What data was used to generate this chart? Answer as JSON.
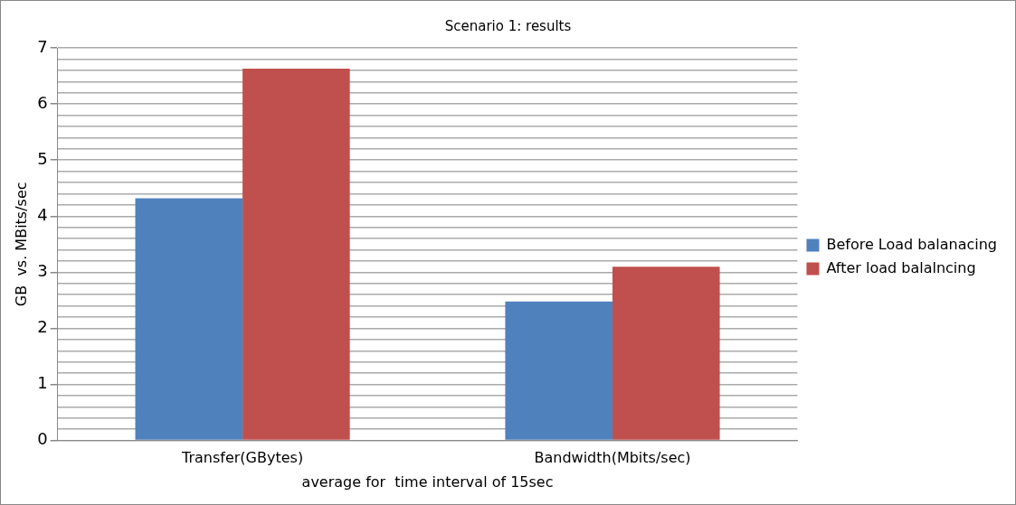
{
  "chart_data": {
    "type": "bar",
    "title": "Scenario 1: results",
    "xlabel": "average for  time interval of 15sec",
    "ylabel": "GB  vs. MBits/sec",
    "categories": [
      "Transfer(GBytes)",
      "Bandwidth(Mbits/sec)"
    ],
    "series": [
      {
        "name": "Before Load balanacing",
        "color": "#4f81bd",
        "values": [
          4.32,
          2.48
        ]
      },
      {
        "name": "After load balalncing",
        "color": "#c0504d",
        "values": [
          6.63,
          3.1
        ]
      }
    ],
    "ylim": [
      0,
      7
    ],
    "yticks": [
      0,
      {
        "value": 0.2,
        "label": null
      },
      {
        "value": 0.4,
        "label": null
      },
      {
        "value": 0.6,
        "label": null
      },
      {
        "value": 0.8,
        "label": null
      },
      1,
      {
        "value": 1.2,
        "label": null
      },
      {
        "value": 1.4,
        "label": null
      },
      {
        "value": 1.6,
        "label": null
      },
      {
        "value": 1.8,
        "label": null
      },
      2,
      {
        "value": 2.2,
        "label": null
      },
      {
        "value": 2.4,
        "label": null
      },
      {
        "value": 2.6,
        "label": null
      },
      {
        "value": 2.8,
        "label": null
      },
      3,
      {
        "value": 3.2,
        "label": null
      },
      {
        "value": 3.4,
        "label": null
      },
      {
        "value": 3.6,
        "label": null
      },
      {
        "value": 3.8,
        "label": null
      },
      4,
      {
        "value": 4.2,
        "label": null
      },
      {
        "value": 4.4,
        "label": null
      },
      {
        "value": 4.6,
        "label": null
      },
      {
        "value": 4.8,
        "label": null
      },
      5,
      {
        "value": 5.2,
        "label": null
      },
      {
        "value": 5.4,
        "label": null
      },
      {
        "value": 5.6,
        "label": null
      },
      {
        "value": 5.8,
        "label": null
      },
      6,
      {
        "value": 6.2,
        "label": null
      },
      {
        "value": 6.4,
        "label": null
      },
      {
        "value": 6.6,
        "label": null
      },
      {
        "value": 6.8,
        "label": null
      },
      7
    ],
    "grid": "y",
    "legend": "right"
  }
}
